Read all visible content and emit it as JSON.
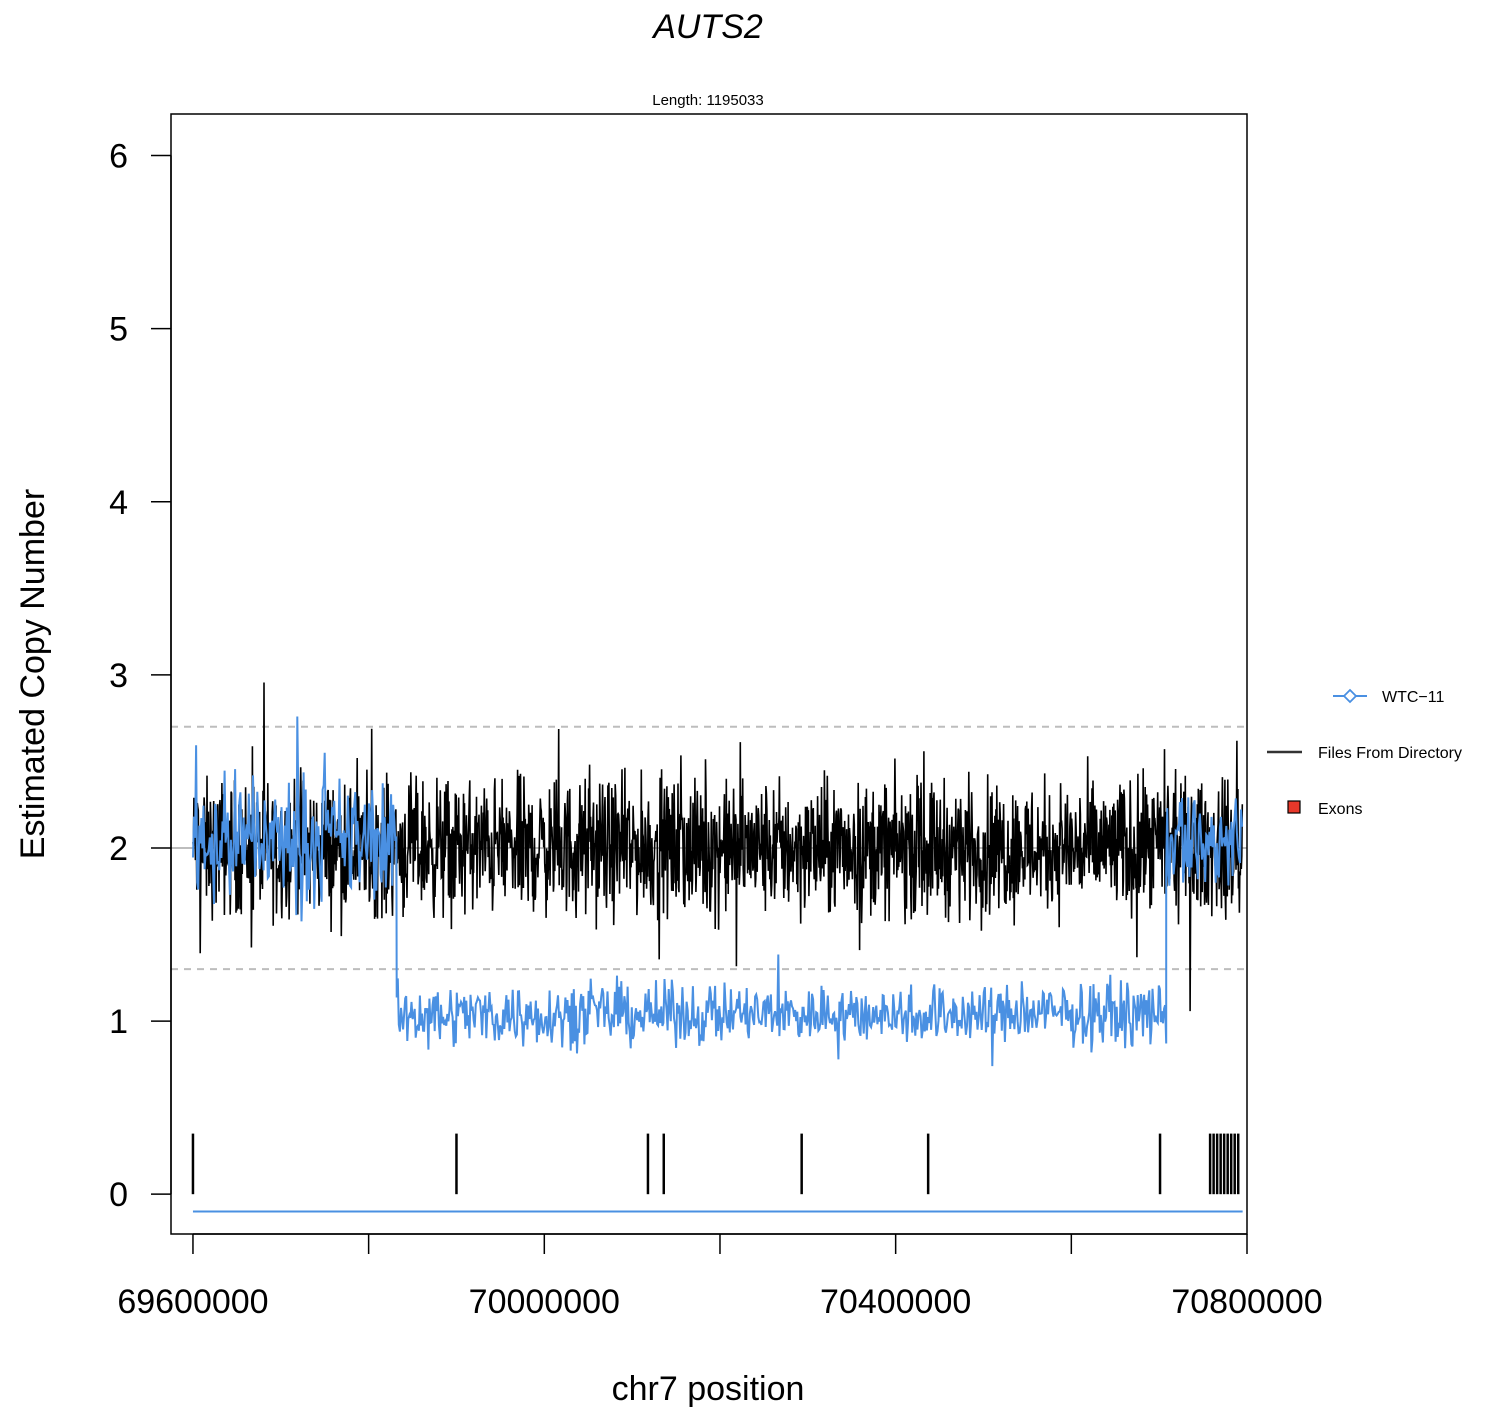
{
  "chart_data": {
    "type": "line",
    "title": "AUTS2",
    "subtitle": "Length: 1195033",
    "xlabel": "chr7 position",
    "ylabel": "Estimated Copy Number",
    "xlim": [
      69575000,
      70800000
    ],
    "ylim": [
      -0.23,
      6.24
    ],
    "x_ticks": [
      69600000,
      69800000,
      70000000,
      70200000,
      70400000,
      70600000,
      70800000
    ],
    "x_tick_labels": [
      "69600000",
      "",
      "70000000",
      "",
      "70400000",
      "",
      "70800000"
    ],
    "y_ticks": [
      0,
      1,
      2,
      3,
      4,
      5,
      6
    ],
    "y_tick_labels": [
      "0",
      "1",
      "2",
      "3",
      "4",
      "5",
      "6"
    ],
    "reference_lines": [
      {
        "y": 2.0,
        "style": "solid",
        "color": "#bdbdbd"
      },
      {
        "y": 2.7,
        "style": "dashed",
        "color": "#bdbdbd"
      },
      {
        "y": 1.3,
        "style": "dashed",
        "color": "#bdbdbd"
      }
    ],
    "gene_start": 69600000,
    "gene_end": 70795033,
    "series": [
      {
        "name": "Files From Directory",
        "color": "#000000",
        "segments": [
          {
            "x_start": 69600000,
            "x_end": 70795033,
            "mean": 2.0,
            "spread": 0.22
          }
        ]
      },
      {
        "name": "WTC-11",
        "color": "#4a90e2",
        "segments": [
          {
            "x_start": 69600000,
            "x_end": 69832000,
            "mean": 2.05,
            "spread": 0.2
          },
          {
            "x_start": 69832000,
            "x_end": 70708000,
            "mean": 1.04,
            "spread": 0.1
          },
          {
            "x_start": 70708000,
            "x_end": 70795033,
            "mean": 2.02,
            "spread": 0.17
          }
        ],
        "baseline_y": -0.1
      }
    ],
    "exons": {
      "name": "Exons",
      "color": "#e8382a",
      "y_range": [
        0,
        0.35
      ],
      "positions": [
        69600000,
        69900000,
        70118000,
        70136000,
        70293000,
        70437000,
        70701000,
        70758000,
        70762000,
        70766000,
        70770000,
        70774000,
        70778000,
        70782000,
        70786000,
        70790000
      ]
    },
    "legend": {
      "placement": "right",
      "entries": [
        {
          "label": "WTC−11",
          "color": "#4a90e2",
          "symbol": "line-diamond"
        },
        {
          "label": "Files From Directory",
          "color": "#333333",
          "symbol": "line"
        },
        {
          "label": "Exons",
          "color": "#e8382a",
          "symbol": "box"
        }
      ]
    }
  }
}
